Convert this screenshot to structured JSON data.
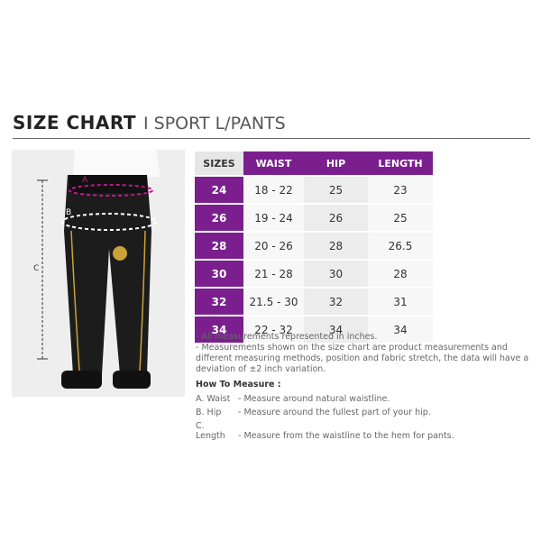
{
  "title": {
    "main": "SIZE CHART",
    "sub": "I SPORT L/PANTS"
  },
  "photo": {
    "labels": {
      "a": "A",
      "b": "B",
      "c": "C"
    }
  },
  "table": {
    "headers": [
      "SIZES",
      "WAIST",
      "HIP",
      "LENGTH"
    ],
    "rows": [
      [
        "24",
        "18 - 22",
        "25",
        "23"
      ],
      [
        "26",
        "19 - 24",
        "26",
        "25"
      ],
      [
        "28",
        "20 - 26",
        "28",
        "26.5"
      ],
      [
        "30",
        "21 - 28",
        "30",
        "28"
      ],
      [
        "32",
        "21.5 - 30",
        "32",
        "31"
      ],
      [
        "34",
        "22 - 32",
        "34",
        "34"
      ]
    ]
  },
  "colors": {
    "accent": "#7b1f8f",
    "measure_arrow": "#c0188c"
  },
  "notes": [
    "- All measurements represented in inches.",
    "- Measurements shown on the size chart are product measurements and different measuring methods, position and fabric stretch, the data will have a deviation of ±2 inch variation."
  ],
  "how": {
    "heading": "How To Measure :",
    "items": [
      {
        "key": "A. Waist",
        "desc": "- Measure around natural waistline."
      },
      {
        "key": "B. Hip",
        "desc": "- Measure around the fullest part of your hip."
      },
      {
        "key": "C. Length",
        "desc": "- Measure from the waistline to the hem for pants."
      }
    ]
  }
}
